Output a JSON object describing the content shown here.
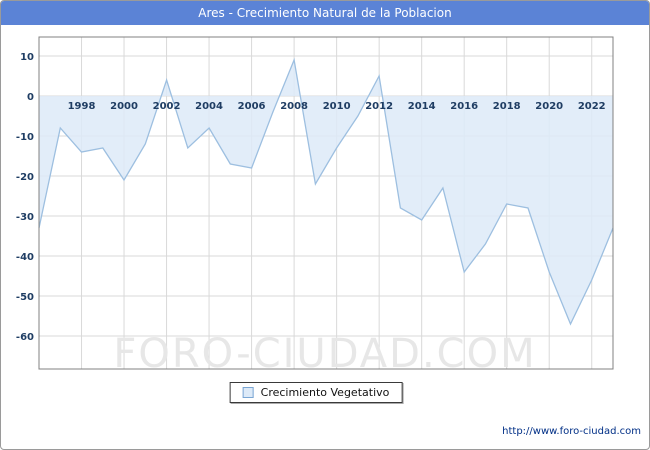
{
  "window": {
    "title": "Ares - Crecimiento Natural de la Poblacion"
  },
  "watermark": "FORO-CIUDAD.COM",
  "legend": {
    "label": "Crecimiento Vegetativo"
  },
  "footer": {
    "url": "http://www.foro-ciudad.com"
  },
  "colors": {
    "titlebar_bg": "#5b83d6",
    "title_text": "#ffffff",
    "area_fill": "#ddeaf8",
    "line": "#9dbfe0",
    "grid": "#d9d9d9",
    "plot_border": "#808080",
    "tick_text": "#1f3d63",
    "watermark": "#e7e7e7",
    "url_text": "#002f86"
  },
  "chart_data": {
    "type": "area",
    "title": "Ares - Crecimiento Natural de la Poblacion",
    "series_name": "Crecimiento Vegetativo",
    "x": [
      1996,
      1997,
      1998,
      1999,
      2000,
      2001,
      2002,
      2003,
      2004,
      2005,
      2006,
      2007,
      2008,
      2009,
      2010,
      2011,
      2012,
      2013,
      2014,
      2015,
      2016,
      2017,
      2018,
      2019,
      2020,
      2021,
      2022,
      2023
    ],
    "values": [
      -33,
      -8,
      -14,
      -13,
      -21,
      -12,
      4,
      -13,
      -8,
      -17,
      -18,
      -4,
      9,
      -22,
      -13,
      -5,
      5,
      -28,
      -31,
      -23,
      -44,
      -37,
      -27,
      -28,
      -44,
      -57,
      -46,
      -33
    ],
    "baseline": 0,
    "ylim": [
      -60,
      10
    ],
    "yticks": [
      10,
      0,
      -10,
      -20,
      -30,
      -40,
      -50,
      -60
    ],
    "xticks": [
      1998,
      2000,
      2002,
      2004,
      2006,
      2008,
      2010,
      2012,
      2014,
      2016,
      2018,
      2020,
      2022
    ],
    "grid": true,
    "legend_position": "bottom",
    "xlabel": "",
    "ylabel": ""
  }
}
